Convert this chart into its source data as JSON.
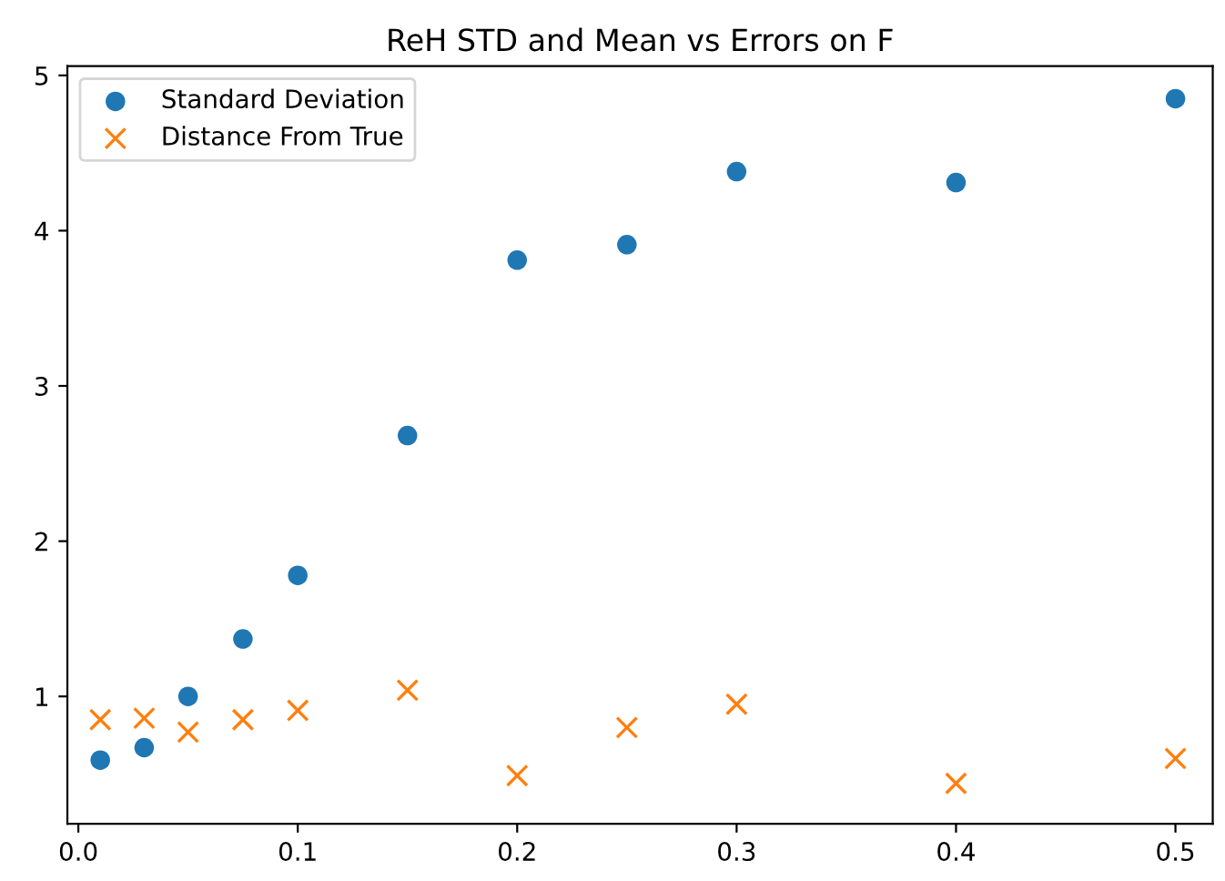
{
  "chart_data": {
    "type": "scatter",
    "title": "ReH STD and Mean vs Errors on F",
    "x": [
      0.01,
      0.03,
      0.05,
      0.075,
      0.1,
      0.15,
      0.2,
      0.25,
      0.3,
      0.4,
      0.5
    ],
    "series": [
      {
        "name": "Standard Deviation",
        "color": "#1f77b4",
        "marker": "circle",
        "values": [
          0.59,
          0.67,
          1.0,
          1.37,
          1.78,
          2.68,
          3.81,
          3.91,
          4.38,
          4.31,
          4.85
        ]
      },
      {
        "name": "Distance From True",
        "color": "#ff7f0e",
        "marker": "cross",
        "values": [
          0.85,
          0.86,
          0.77,
          0.85,
          0.91,
          1.04,
          0.49,
          0.8,
          0.95,
          0.44,
          0.6
        ]
      }
    ],
    "xlim": [
      -0.005,
      0.517
    ],
    "ylim": [
      0.18,
      5.06
    ],
    "xticks": [
      {
        "value": 0.0,
        "label": "0.0"
      },
      0.1,
      0.2,
      0.3,
      0.4,
      0.5
    ],
    "yticks": [
      1,
      2,
      3,
      4,
      5
    ],
    "grid": false,
    "legend": "top left"
  }
}
